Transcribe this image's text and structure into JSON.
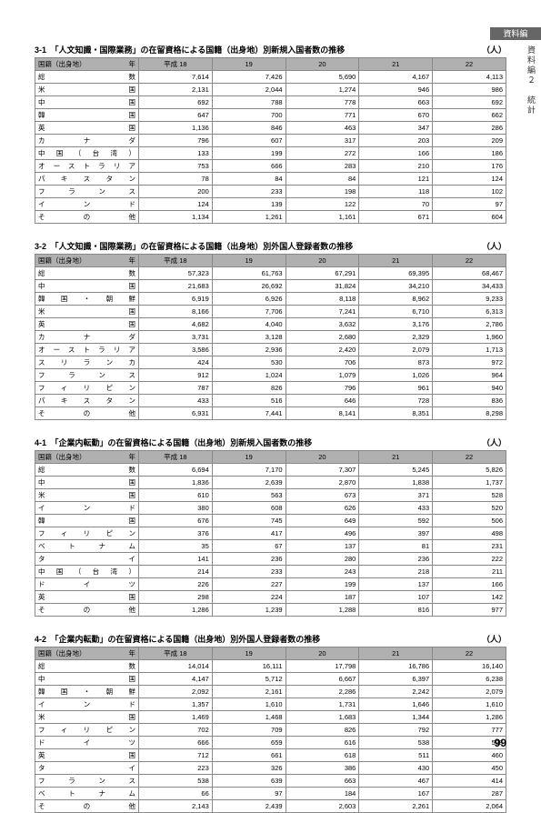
{
  "sideTab": "資料編",
  "sideVert": "資料編２　統計",
  "pageNumber": "99",
  "unitLabel": "（人）",
  "tables": [
    {
      "caption": "3-1　「人文知識・国際業務」の在留資格による国籍（出身地）別新規入国者数の推移",
      "years": [
        "平成 18",
        "19",
        "20",
        "21",
        "22"
      ],
      "rowHeaderLabel": "国籍（出身地）",
      "yearCornerLabel": "年",
      "rows": [
        {
          "label": "総数",
          "v": [
            "7,614",
            "7,426",
            "5,690",
            "4,167",
            "4,113"
          ]
        },
        {
          "label": "米国",
          "v": [
            "2,131",
            "2,044",
            "1,274",
            "946",
            "986"
          ]
        },
        {
          "label": "中国",
          "v": [
            "692",
            "788",
            "778",
            "663",
            "692"
          ]
        },
        {
          "label": "韓国",
          "v": [
            "647",
            "700",
            "771",
            "670",
            "662"
          ]
        },
        {
          "label": "英国",
          "v": [
            "1,136",
            "846",
            "463",
            "347",
            "286"
          ]
        },
        {
          "label": "カナダ",
          "v": [
            "796",
            "607",
            "317",
            "203",
            "209"
          ]
        },
        {
          "label": "中国（台湾）",
          "v": [
            "133",
            "199",
            "272",
            "166",
            "186"
          ]
        },
        {
          "label": "オーストラリア",
          "v": [
            "753",
            "666",
            "283",
            "210",
            "176"
          ]
        },
        {
          "label": "パキスタン",
          "v": [
            "78",
            "84",
            "84",
            "121",
            "124"
          ]
        },
        {
          "label": "フランス",
          "v": [
            "200",
            "233",
            "198",
            "118",
            "102"
          ]
        },
        {
          "label": "インド",
          "v": [
            "124",
            "139",
            "122",
            "70",
            "97"
          ]
        },
        {
          "label": "その他",
          "v": [
            "1,134",
            "1,261",
            "1,161",
            "671",
            "604"
          ]
        }
      ]
    },
    {
      "caption": "3-2　「人文知識・国際業務」の在留資格による国籍（出身地）別外国人登録者数の推移",
      "years": [
        "平成 18",
        "19",
        "20",
        "21",
        "22"
      ],
      "rowHeaderLabel": "国籍（出身地）",
      "yearCornerLabel": "年",
      "rows": [
        {
          "label": "総数",
          "v": [
            "57,323",
            "61,763",
            "67,291",
            "69,395",
            "68,467"
          ]
        },
        {
          "label": "中国",
          "v": [
            "21,683",
            "26,692",
            "31,824",
            "34,210",
            "34,433"
          ]
        },
        {
          "label": "韓国・朝鮮",
          "v": [
            "6,919",
            "6,926",
            "8,118",
            "8,962",
            "9,233"
          ]
        },
        {
          "label": "米国",
          "v": [
            "8,166",
            "7,706",
            "7,241",
            "6,710",
            "6,313"
          ]
        },
        {
          "label": "英国",
          "v": [
            "4,682",
            "4,040",
            "3,632",
            "3,176",
            "2,786"
          ]
        },
        {
          "label": "カナダ",
          "v": [
            "3,731",
            "3,128",
            "2,680",
            "2,329",
            "1,960"
          ]
        },
        {
          "label": "オーストラリア",
          "v": [
            "3,586",
            "2,936",
            "2,420",
            "2,079",
            "1,713"
          ]
        },
        {
          "label": "スリランカ",
          "v": [
            "424",
            "530",
            "706",
            "873",
            "972"
          ]
        },
        {
          "label": "フランス",
          "v": [
            "912",
            "1,024",
            "1,079",
            "1,026",
            "964"
          ]
        },
        {
          "label": "フィリピン",
          "v": [
            "787",
            "826",
            "796",
            "961",
            "940"
          ]
        },
        {
          "label": "パキスタン",
          "v": [
            "433",
            "516",
            "646",
            "728",
            "836"
          ]
        },
        {
          "label": "その他",
          "v": [
            "6,931",
            "7,441",
            "8,141",
            "8,351",
            "8,298"
          ]
        }
      ]
    },
    {
      "caption": "4-1　「企業内転勤」の在留資格による国籍（出身地）別新規入国者数の推移",
      "years": [
        "平成 18",
        "19",
        "20",
        "21",
        "22"
      ],
      "rowHeaderLabel": "国籍（出身地）",
      "yearCornerLabel": "年",
      "rows": [
        {
          "label": "総数",
          "v": [
            "6,694",
            "7,170",
            "7,307",
            "5,245",
            "5,826"
          ]
        },
        {
          "label": "中国",
          "v": [
            "1,836",
            "2,639",
            "2,870",
            "1,838",
            "1,737"
          ]
        },
        {
          "label": "米国",
          "v": [
            "610",
            "563",
            "673",
            "371",
            "528"
          ]
        },
        {
          "label": "インド",
          "v": [
            "380",
            "608",
            "626",
            "433",
            "520"
          ]
        },
        {
          "label": "韓国",
          "v": [
            "676",
            "745",
            "649",
            "592",
            "506"
          ]
        },
        {
          "label": "フィリピン",
          "v": [
            "376",
            "417",
            "496",
            "397",
            "498"
          ]
        },
        {
          "label": "ベトナム",
          "v": [
            "35",
            "67",
            "137",
            "81",
            "231"
          ]
        },
        {
          "label": "タイ",
          "v": [
            "141",
            "236",
            "280",
            "236",
            "222"
          ]
        },
        {
          "label": "中国（台湾）",
          "v": [
            "214",
            "233",
            "243",
            "218",
            "211"
          ]
        },
        {
          "label": "ドイツ",
          "v": [
            "226",
            "227",
            "199",
            "137",
            "166"
          ]
        },
        {
          "label": "英国",
          "v": [
            "298",
            "224",
            "187",
            "107",
            "142"
          ]
        },
        {
          "label": "その他",
          "v": [
            "1,286",
            "1,239",
            "1,288",
            "816",
            "977"
          ]
        }
      ]
    },
    {
      "caption": "4-2　「企業内転勤」の在留資格による国籍（出身地）別外国人登録者数の推移",
      "years": [
        "平成 18",
        "19",
        "20",
        "21",
        "22"
      ],
      "rowHeaderLabel": "国籍（出身地）",
      "yearCornerLabel": "年",
      "rows": [
        {
          "label": "総数",
          "v": [
            "14,014",
            "16,111",
            "17,798",
            "16,786",
            "16,140"
          ]
        },
        {
          "label": "中国",
          "v": [
            "4,147",
            "5,712",
            "6,667",
            "6,397",
            "6,238"
          ]
        },
        {
          "label": "韓国・朝鮮",
          "v": [
            "2,092",
            "2,161",
            "2,286",
            "2,242",
            "2,079"
          ]
        },
        {
          "label": "インド",
          "v": [
            "1,357",
            "1,610",
            "1,731",
            "1,646",
            "1,610"
          ]
        },
        {
          "label": "米国",
          "v": [
            "1,469",
            "1,468",
            "1,683",
            "1,344",
            "1,286"
          ]
        },
        {
          "label": "フィリピン",
          "v": [
            "702",
            "709",
            "826",
            "792",
            "777"
          ]
        },
        {
          "label": "ドイツ",
          "v": [
            "666",
            "659",
            "616",
            "538",
            "508"
          ]
        },
        {
          "label": "英国",
          "v": [
            "712",
            "661",
            "618",
            "511",
            "460"
          ]
        },
        {
          "label": "タイ",
          "v": [
            "223",
            "326",
            "386",
            "430",
            "450"
          ]
        },
        {
          "label": "フランス",
          "v": [
            "538",
            "639",
            "663",
            "467",
            "414"
          ]
        },
        {
          "label": "ベトナム",
          "v": [
            "66",
            "97",
            "184",
            "167",
            "287"
          ]
        },
        {
          "label": "その他",
          "v": [
            "2,143",
            "2,439",
            "2,603",
            "2,261",
            "2,064"
          ]
        }
      ]
    }
  ]
}
